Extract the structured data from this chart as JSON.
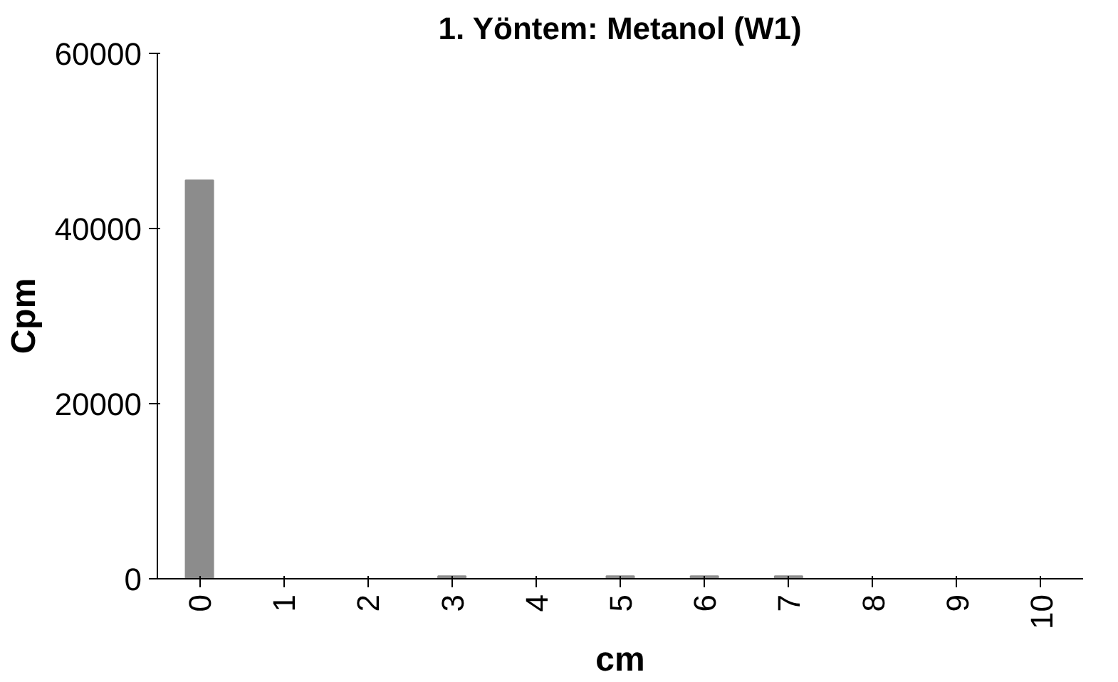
{
  "chart_data": {
    "type": "bar",
    "title": "1. Yöntem: Metanol (W1)",
    "xlabel": "cm",
    "ylabel": "Cpm",
    "categories": [
      "0",
      "1",
      "2",
      "3",
      "4",
      "5",
      "6",
      "7",
      "8",
      "9",
      "10"
    ],
    "values": [
      45500,
      0,
      0,
      300,
      0,
      300,
      300,
      300,
      0,
      0,
      0
    ],
    "color": "#8c8c8c",
    "ylim": [
      0,
      60000
    ],
    "yticks": [
      0,
      20000,
      40000,
      60000
    ],
    "grid": false
  }
}
